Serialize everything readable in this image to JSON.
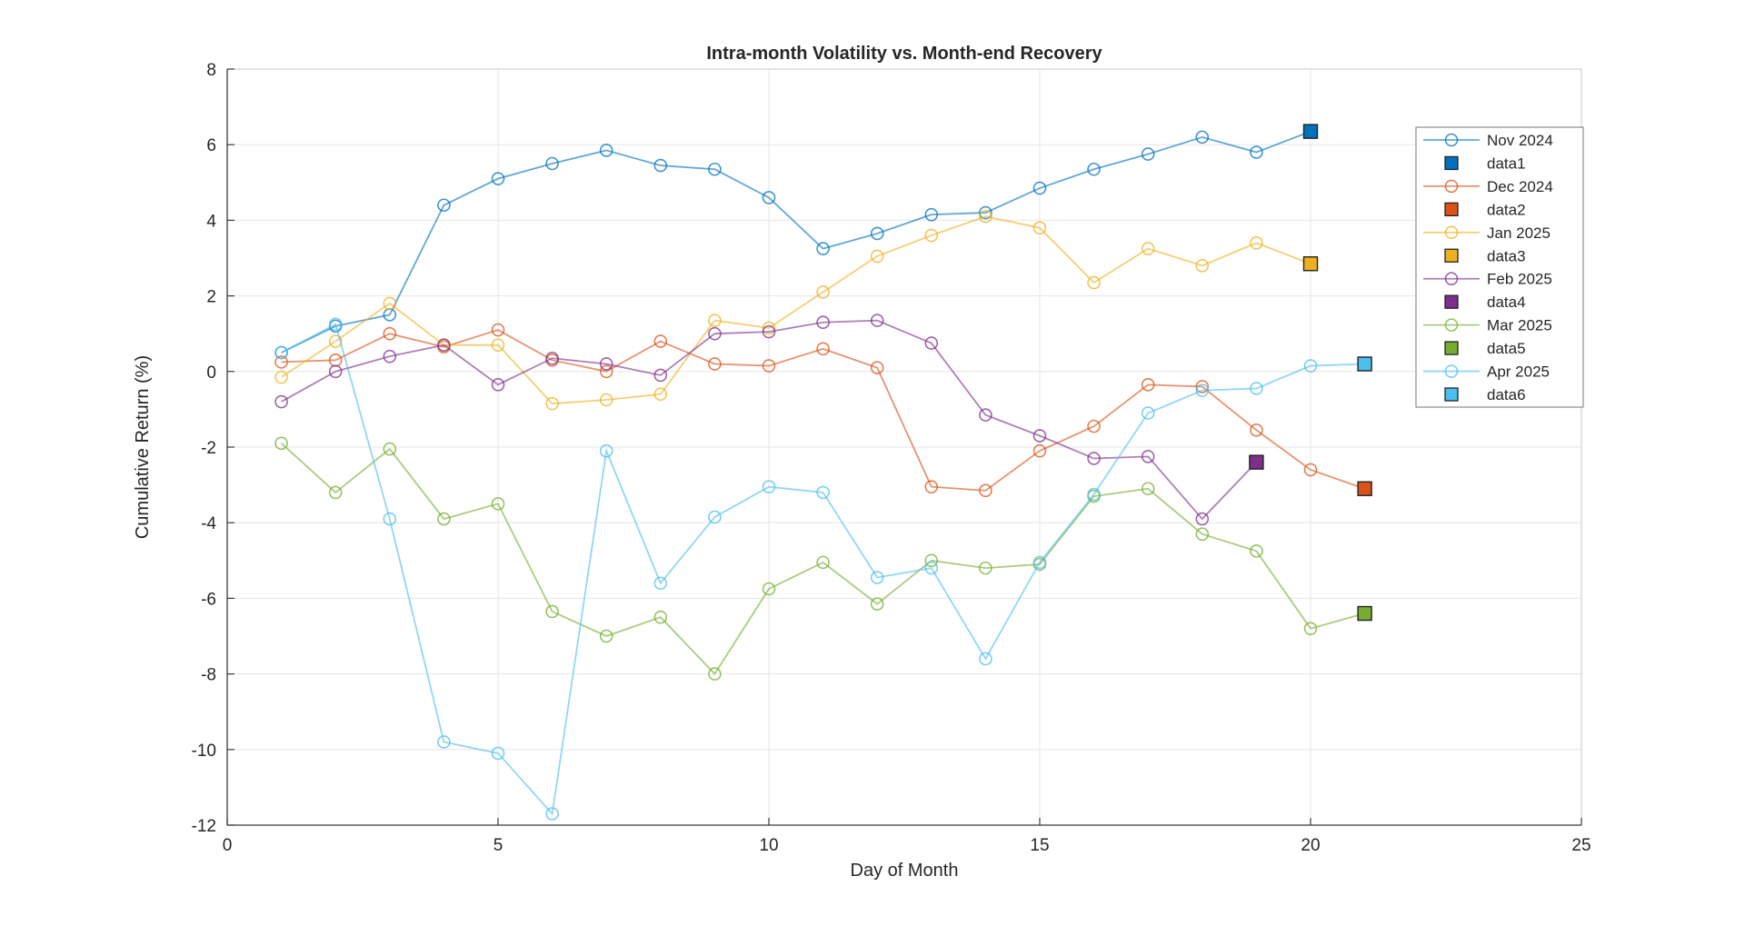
{
  "chart_data": {
    "type": "line",
    "title": "Intra-month Volatility vs. Month-end Recovery",
    "xlabel": "Day of Month",
    "ylabel": "Cumulative Return (%)",
    "xlim": [
      0,
      25
    ],
    "ylim": [
      -12,
      8
    ],
    "xticks": [
      0,
      5,
      10,
      15,
      20,
      25
    ],
    "yticks": [
      -12,
      -10,
      -8,
      -6,
      -4,
      -2,
      0,
      2,
      4,
      6,
      8
    ],
    "grid": true,
    "legend_position": "northeast",
    "series": [
      {
        "name": "Nov 2024",
        "color": "#0072BD",
        "marker": "circle",
        "days": [
          1,
          2,
          3,
          4,
          5,
          6,
          7,
          8,
          9,
          10,
          11,
          12,
          13,
          14,
          15,
          16,
          17,
          18,
          19,
          20
        ],
        "values": [
          0.5,
          1.2,
          1.5,
          4.4,
          5.1,
          5.5,
          5.85,
          5.45,
          5.35,
          4.6,
          3.25,
          3.65,
          4.15,
          4.2,
          4.85,
          5.35,
          5.75,
          6.2,
          5.8,
          6.35
        ]
      },
      {
        "name": "Dec 2024",
        "color": "#D95319",
        "marker": "circle",
        "days": [
          1,
          2,
          3,
          4,
          5,
          6,
          7,
          8,
          9,
          10,
          11,
          12,
          13,
          14,
          15,
          16,
          17,
          18,
          19,
          20,
          21
        ],
        "values": [
          0.25,
          0.3,
          1.0,
          0.65,
          1.1,
          0.3,
          0.0,
          0.8,
          0.2,
          0.15,
          0.6,
          0.1,
          -3.05,
          -3.15,
          -2.1,
          -1.45,
          -0.35,
          -0.4,
          -1.55,
          -2.6,
          -3.1
        ]
      },
      {
        "name": "Jan 2025",
        "color": "#EDB120",
        "marker": "circle",
        "days": [
          1,
          2,
          3,
          4,
          5,
          6,
          7,
          8,
          9,
          10,
          11,
          12,
          13,
          14,
          15,
          16,
          17,
          18,
          19,
          20
        ],
        "values": [
          -0.15,
          0.8,
          1.8,
          0.7,
          0.7,
          -0.85,
          -0.75,
          -0.6,
          1.35,
          1.15,
          2.1,
          3.05,
          3.6,
          4.1,
          3.8,
          2.35,
          3.25,
          2.8,
          3.4,
          2.85
        ]
      },
      {
        "name": "Feb 2025",
        "color": "#7E2F8E",
        "marker": "circle",
        "days": [
          1,
          2,
          3,
          4,
          5,
          6,
          7,
          8,
          9,
          10,
          11,
          12,
          13,
          14,
          15,
          16,
          17,
          18,
          19
        ],
        "values": [
          -0.8,
          0.0,
          0.4,
          0.7,
          -0.35,
          0.35,
          0.2,
          -0.1,
          1.0,
          1.05,
          1.3,
          1.35,
          0.75,
          -1.15,
          -1.7,
          -2.3,
          -2.25,
          -3.9,
          -2.4
        ]
      },
      {
        "name": "Mar 2025",
        "color": "#77AC30",
        "marker": "circle",
        "days": [
          1,
          2,
          3,
          4,
          5,
          6,
          7,
          8,
          9,
          10,
          11,
          12,
          13,
          14,
          15,
          16,
          17,
          18,
          19,
          20,
          21
        ],
        "values": [
          -1.9,
          -3.2,
          -2.05,
          -3.9,
          -3.5,
          -6.35,
          -7.0,
          -6.5,
          -8.0,
          -5.75,
          -5.05,
          -6.15,
          -5.0,
          -5.2,
          -5.1,
          -3.3,
          -3.1,
          -4.3,
          -4.75,
          -6.8,
          -6.4
        ]
      },
      {
        "name": "Apr 2025",
        "color": "#4DBEEE",
        "marker": "circle",
        "days": [
          1,
          2,
          3,
          4,
          5,
          6,
          7,
          8,
          9,
          10,
          11,
          12,
          13,
          14,
          15,
          16,
          17,
          18,
          19,
          20,
          21
        ],
        "values": [
          0.5,
          1.25,
          -3.9,
          -9.8,
          -10.1,
          -11.7,
          -2.1,
          -5.6,
          -3.85,
          -3.05,
          -3.2,
          -5.45,
          -5.2,
          -7.6,
          -5.05,
          -3.25,
          -1.1,
          -0.5,
          -0.45,
          0.15,
          0.2
        ]
      }
    ],
    "end_markers": [
      {
        "name": "data1",
        "color": "#0072BD",
        "day": 20,
        "value": 6.35
      },
      {
        "name": "data2",
        "color": "#D95319",
        "day": 21,
        "value": -3.1
      },
      {
        "name": "data3",
        "color": "#EDB120",
        "day": 20,
        "value": 2.85
      },
      {
        "name": "data4",
        "color": "#7E2F8E",
        "day": 19,
        "value": -2.4
      },
      {
        "name": "data5",
        "color": "#77AC30",
        "day": 21,
        "value": -6.4
      },
      {
        "name": "data6",
        "color": "#4DBEEE",
        "day": 21,
        "value": 0.2
      }
    ],
    "legend": [
      "Nov 2024",
      "data1",
      "Dec 2024",
      "data2",
      "Jan 2025",
      "data3",
      "Feb 2025",
      "data4",
      "Mar 2025",
      "data5",
      "Apr 2025",
      "data6"
    ],
    "style": {
      "grid_color": "#e6e6e6",
      "axis_color": "#3a3a3a",
      "box_color": "#c9c9c9",
      "line_opacity": 0.62,
      "legend_border_color": "#767676",
      "background": "#ffffff"
    }
  }
}
